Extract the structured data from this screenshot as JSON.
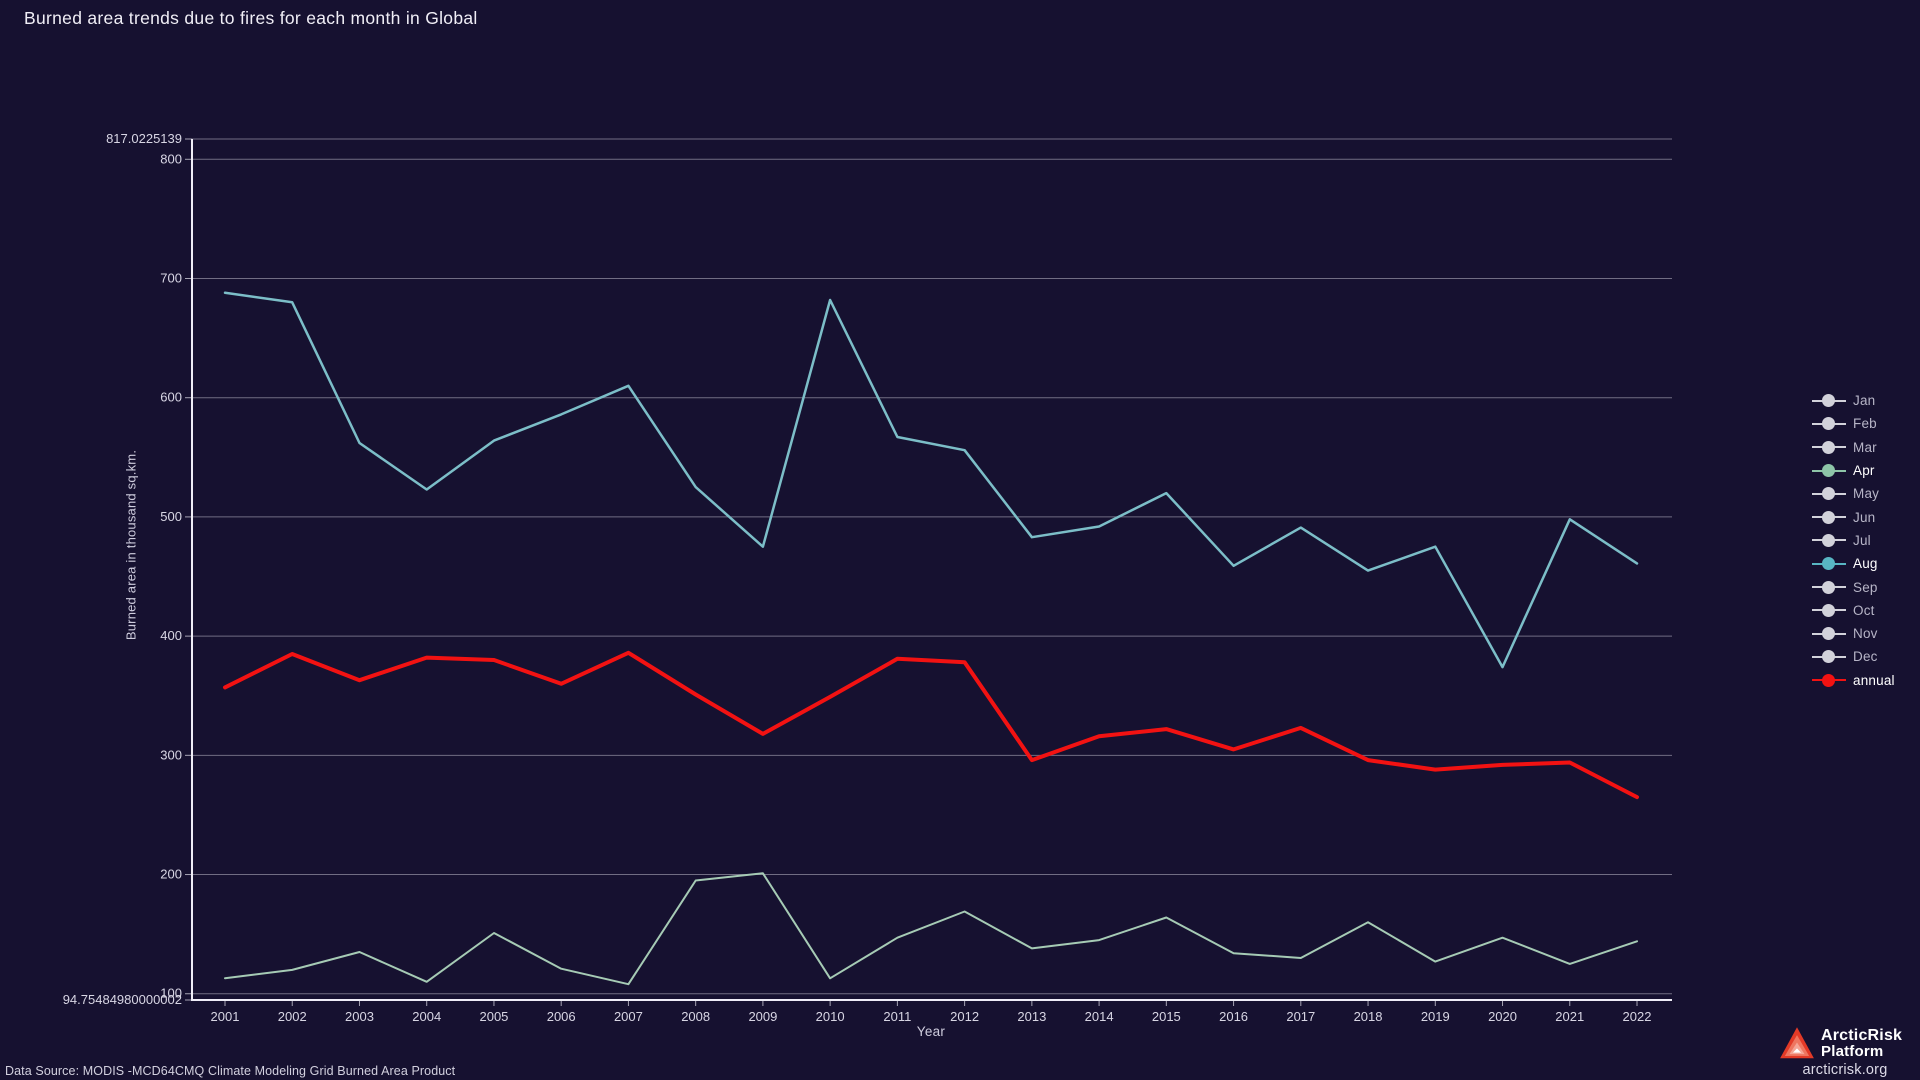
{
  "title": "Burned area trends due to fires for each month in Global",
  "axes": {
    "xlabel": "Year",
    "ylabel": "Burned area in thousand sq.km."
  },
  "colors": {
    "background": "#161130",
    "gridline": "#cbc9d6",
    "axis_line": "#efedf7",
    "tick_label": "#d8d6e4",
    "active_legend_text": "#ffffff",
    "inactive_legend_text": "#b7b5c7",
    "apr_line": "#a6cbb5",
    "aug_line": "#7cbec8",
    "annual_line": "#f21212",
    "inactive_marker": "#d2d2da"
  },
  "legend": {
    "items": [
      {
        "label": "Jan",
        "active": false,
        "marker_color": "#d2d2da"
      },
      {
        "label": "Feb",
        "active": false,
        "marker_color": "#d2d2da"
      },
      {
        "label": "Mar",
        "active": false,
        "marker_color": "#d2d2da"
      },
      {
        "label": "Apr",
        "active": true,
        "marker_color": "#8ec5a8"
      },
      {
        "label": "May",
        "active": false,
        "marker_color": "#d2d2da"
      },
      {
        "label": "Jun",
        "active": false,
        "marker_color": "#d2d2da"
      },
      {
        "label": "Jul",
        "active": false,
        "marker_color": "#d2d2da"
      },
      {
        "label": "Aug",
        "active": true,
        "marker_color": "#58b6c3"
      },
      {
        "label": "Sep",
        "active": false,
        "marker_color": "#d2d2da"
      },
      {
        "label": "Oct",
        "active": false,
        "marker_color": "#d2d2da"
      },
      {
        "label": "Nov",
        "active": false,
        "marker_color": "#d2d2da"
      },
      {
        "label": "Dec",
        "active": false,
        "marker_color": "#d2d2da"
      },
      {
        "label": "annual",
        "active": true,
        "marker_color": "#f21212"
      }
    ]
  },
  "chart_data": {
    "type": "line",
    "title": "Burned area trends due to fires for each month in Global",
    "xlabel": "Year",
    "ylabel": "Burned area in thousand sq.km.",
    "grid": true,
    "legend_position": "right",
    "ylim": [
      94.75484980000002,
      817.0225139
    ],
    "x": [
      2001,
      2002,
      2003,
      2004,
      2005,
      2006,
      2007,
      2008,
      2009,
      2010,
      2011,
      2012,
      2013,
      2014,
      2015,
      2016,
      2017,
      2018,
      2019,
      2020,
      2021,
      2022
    ],
    "yticks": [
      {
        "label": "817.0225139",
        "value": 817.0225139
      },
      {
        "label": "800",
        "value": 800
      },
      {
        "label": "700",
        "value": 700
      },
      {
        "label": "600",
        "value": 600
      },
      {
        "label": "500",
        "value": 500
      },
      {
        "label": "400",
        "value": 400
      },
      {
        "label": "300",
        "value": 300
      },
      {
        "label": "200",
        "value": 200
      },
      {
        "label": "100",
        "value": 100
      },
      {
        "label": "94.75484980000002",
        "value": 94.75484980000002
      }
    ],
    "series": [
      {
        "name": "Apr",
        "color": "#a6cbb5",
        "width": 2,
        "values": [
          113,
          120,
          135,
          110,
          151,
          121,
          108,
          195,
          201,
          113,
          147,
          169,
          138,
          145,
          164,
          134,
          130,
          160,
          127,
          147,
          125,
          144
        ]
      },
      {
        "name": "Aug",
        "color": "#7cbec8",
        "width": 2.5,
        "values": [
          688,
          680,
          562,
          523,
          564,
          586,
          610,
          525,
          475,
          682,
          567,
          556,
          483,
          492,
          520,
          459,
          491,
          455,
          475,
          374,
          498,
          461
        ]
      },
      {
        "name": "annual",
        "color": "#f21212",
        "width": 4,
        "values": [
          357,
          385,
          363,
          382,
          380,
          360,
          386,
          351,
          318,
          349,
          381,
          378,
          296,
          316,
          322,
          305,
          323,
          296,
          288,
          292,
          294,
          265
        ]
      }
    ]
  },
  "footer": {
    "data_source": "Data Source: MODIS -MCD64CMQ Climate Modeling Grid Burned Area Product"
  },
  "branding": {
    "name_line1": "ArcticRisk",
    "name_line2": "Platform",
    "url": "arcticrisk.org"
  }
}
